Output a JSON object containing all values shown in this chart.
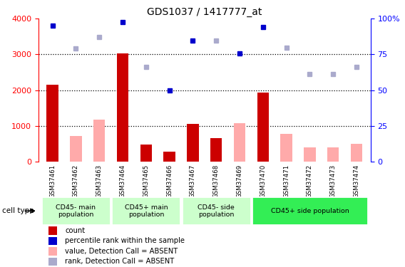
{
  "title": "GDS1037 / 1417777_at",
  "samples": [
    "GSM37461",
    "GSM37462",
    "GSM37463",
    "GSM37464",
    "GSM37465",
    "GSM37466",
    "GSM37467",
    "GSM37468",
    "GSM37469",
    "GSM37470",
    "GSM37471",
    "GSM37472",
    "GSM37473",
    "GSM37474"
  ],
  "count_values": [
    2150,
    null,
    null,
    3030,
    470,
    270,
    1060,
    650,
    null,
    1930,
    null,
    null,
    null,
    null
  ],
  "count_absent": [
    null,
    720,
    1170,
    null,
    null,
    null,
    null,
    null,
    1080,
    null,
    780,
    400,
    400,
    490
  ],
  "rank_present": [
    3800,
    null,
    null,
    3900,
    null,
    2000,
    3380,
    null,
    3020,
    3770,
    null,
    null,
    null,
    null
  ],
  "rank_absent": [
    null,
    3170,
    3490,
    null,
    2640,
    null,
    null,
    3390,
    null,
    null,
    3190,
    2440,
    2440,
    2650
  ],
  "group_starts_idx": [
    0,
    3,
    6,
    9
  ],
  "group_ends_idx": [
    2,
    5,
    8,
    13
  ],
  "group_labels": [
    "CD45- main\npopulation",
    "CD45+ main\npopulation",
    "CD45- side\npopulation",
    "CD45+ side population"
  ],
  "group_light_color": "#ccffcc",
  "group_dark_color": "#33ee55",
  "ylim_left": [
    0,
    4000
  ],
  "ylim_right": [
    0,
    100
  ],
  "yticks_left": [
    0,
    1000,
    2000,
    3000,
    4000
  ],
  "yticks_right": [
    0,
    25,
    50,
    75,
    100
  ],
  "ytick_labels_right": [
    "0",
    "25",
    "50",
    "75",
    "100%"
  ],
  "bar_color_present": "#cc0000",
  "bar_color_absent": "#ffaaaa",
  "dot_color_present": "#0000cc",
  "dot_color_absent": "#aaaacc",
  "bar_width": 0.5,
  "cell_type_label": "cell type",
  "legend_items": [
    {
      "label": "count",
      "color": "#cc0000"
    },
    {
      "label": "percentile rank within the sample",
      "color": "#0000cc"
    },
    {
      "label": "value, Detection Call = ABSENT",
      "color": "#ffaaaa"
    },
    {
      "label": "rank, Detection Call = ABSENT",
      "color": "#aaaacc"
    }
  ],
  "gridline_values": [
    1000,
    2000,
    3000
  ],
  "tick_bg_color": "#dddddd"
}
